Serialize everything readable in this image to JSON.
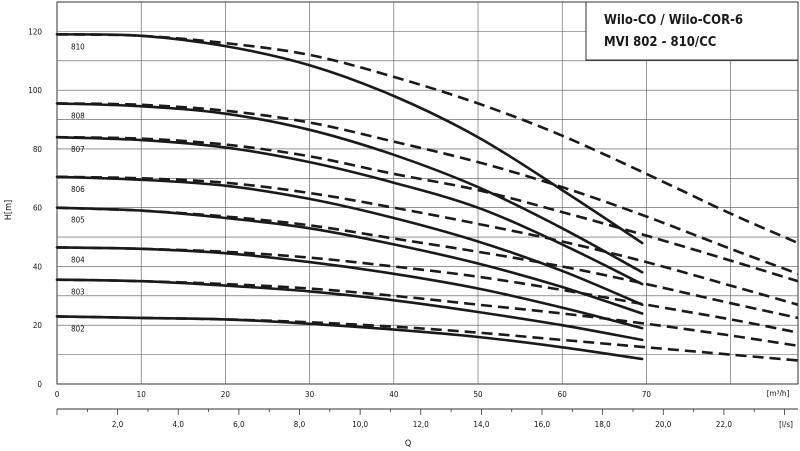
{
  "chart_data": {
    "type": "line",
    "title_lines": [
      "Wilo-CO / Wilo-COR-6",
      "MVI 802 - 810/CC"
    ],
    "ylabel": "H[m]",
    "xlabel": "Q",
    "x_unit_primary": "[m³/h]",
    "x_unit_secondary": "[l/s]",
    "xlim": [
      0,
      88
    ],
    "ylim": [
      0,
      130
    ],
    "grid": true,
    "y_ticks": [
      "0",
      "20",
      "40",
      "60",
      "80",
      "100",
      "120"
    ],
    "x_ticks_primary": [
      "0",
      "10",
      "20",
      "30",
      "40",
      "50",
      "60",
      "70"
    ],
    "x_ticks_secondary": [
      "2,0",
      "4,0",
      "6,0",
      "8,0",
      "10,0",
      "12,0",
      "14,0",
      "16,0",
      "18,0",
      "20,0",
      "22,0"
    ],
    "series": [
      {
        "name": "810",
        "solid": [
          [
            0,
            119
          ],
          [
            10,
            118.5
          ],
          [
            20,
            115
          ],
          [
            30,
            108.5
          ],
          [
            40,
            98
          ],
          [
            50,
            84
          ],
          [
            60,
            66
          ],
          [
            69.5,
            48
          ]
        ],
        "dashed": [
          [
            0,
            119
          ],
          [
            10,
            118.5
          ],
          [
            20,
            116
          ],
          [
            30,
            112
          ],
          [
            40,
            104.5
          ],
          [
            50,
            95.5
          ],
          [
            60,
            84.5
          ],
          [
            70,
            71.5
          ],
          [
            80,
            58
          ],
          [
            88,
            48
          ]
        ]
      },
      {
        "name": "808",
        "solid": [
          [
            0,
            95.5
          ],
          [
            10,
            94.5
          ],
          [
            20,
            92
          ],
          [
            30,
            86.5
          ],
          [
            40,
            78
          ],
          [
            50,
            67
          ],
          [
            60,
            53
          ],
          [
            69.5,
            38
          ]
        ],
        "dashed": [
          [
            0,
            95.5
          ],
          [
            10,
            95
          ],
          [
            20,
            93
          ],
          [
            30,
            89
          ],
          [
            40,
            82.5
          ],
          [
            50,
            75.5
          ],
          [
            60,
            67
          ],
          [
            70,
            57
          ],
          [
            80,
            46
          ],
          [
            88,
            37.5
          ]
        ]
      },
      {
        "name": "807",
        "solid": [
          [
            0,
            84
          ],
          [
            10,
            83
          ],
          [
            20,
            80.5
          ],
          [
            30,
            75.5
          ],
          [
            40,
            68.5
          ],
          [
            50,
            60
          ],
          [
            60,
            47.5
          ],
          [
            69.5,
            34
          ]
        ],
        "dashed": [
          [
            0,
            84
          ],
          [
            10,
            83.5
          ],
          [
            20,
            81.5
          ],
          [
            30,
            77.5
          ],
          [
            40,
            71.5
          ],
          [
            50,
            66
          ],
          [
            60,
            58.5
          ],
          [
            70,
            50.5
          ],
          [
            80,
            42
          ],
          [
            88,
            35
          ]
        ]
      },
      {
        "name": "806",
        "solid": [
          [
            0,
            70.5
          ],
          [
            10,
            69.5
          ],
          [
            20,
            67.5
          ],
          [
            30,
            63
          ],
          [
            40,
            56.5
          ],
          [
            50,
            48.5
          ],
          [
            60,
            38.5
          ],
          [
            69.5,
            27
          ]
        ],
        "dashed": [
          [
            0,
            70.5
          ],
          [
            10,
            70
          ],
          [
            20,
            68.5
          ],
          [
            30,
            65
          ],
          [
            40,
            60
          ],
          [
            50,
            54.5
          ],
          [
            60,
            48.5
          ],
          [
            70,
            41.5
          ],
          [
            80,
            33.5
          ],
          [
            88,
            27
          ]
        ]
      },
      {
        "name": "805",
        "solid": [
          [
            0,
            60
          ],
          [
            10,
            59
          ],
          [
            20,
            56.5
          ],
          [
            30,
            53
          ],
          [
            40,
            47.5
          ],
          [
            50,
            41
          ],
          [
            60,
            33
          ],
          [
            69.5,
            24
          ]
        ],
        "dashed": [
          [
            0,
            60
          ],
          [
            10,
            59
          ],
          [
            20,
            57
          ],
          [
            30,
            54
          ],
          [
            40,
            49.5
          ],
          [
            50,
            45
          ],
          [
            60,
            40
          ],
          [
            70,
            34
          ],
          [
            80,
            27.5
          ],
          [
            88,
            22.5
          ]
        ]
      },
      {
        "name": "804",
        "solid": [
          [
            0,
            46.5
          ],
          [
            10,
            46
          ],
          [
            20,
            44.5
          ],
          [
            30,
            41.5
          ],
          [
            40,
            37.5
          ],
          [
            50,
            32.5
          ],
          [
            60,
            26
          ],
          [
            69.5,
            19
          ]
        ],
        "dashed": [
          [
            0,
            46.5
          ],
          [
            10,
            46
          ],
          [
            20,
            45
          ],
          [
            30,
            43
          ],
          [
            40,
            40
          ],
          [
            50,
            36.5
          ],
          [
            60,
            32
          ],
          [
            70,
            27
          ],
          [
            80,
            22
          ],
          [
            88,
            17.5
          ]
        ]
      },
      {
        "name": "803",
        "solid": [
          [
            0,
            35.5
          ],
          [
            10,
            35
          ],
          [
            20,
            33.5
          ],
          [
            30,
            31.5
          ],
          [
            40,
            28.5
          ],
          [
            50,
            24.5
          ],
          [
            60,
            20
          ],
          [
            69.5,
            15
          ]
        ],
        "dashed": [
          [
            0,
            35.5
          ],
          [
            10,
            35
          ],
          [
            20,
            34
          ],
          [
            30,
            32.5
          ],
          [
            40,
            30
          ],
          [
            50,
            27
          ],
          [
            60,
            24
          ],
          [
            70,
            20.5
          ],
          [
            80,
            16.5
          ],
          [
            88,
            13
          ]
        ]
      },
      {
        "name": "802",
        "solid": [
          [
            0,
            23
          ],
          [
            10,
            22.5
          ],
          [
            20,
            22
          ],
          [
            30,
            20.5
          ],
          [
            40,
            18.5
          ],
          [
            50,
            16
          ],
          [
            60,
            12.5
          ],
          [
            69.5,
            8.5
          ]
        ],
        "dashed": [
          [
            0,
            23
          ],
          [
            10,
            22.5
          ],
          [
            20,
            22
          ],
          [
            30,
            21
          ],
          [
            40,
            19.5
          ],
          [
            50,
            17.5
          ],
          [
            60,
            15
          ],
          [
            70,
            12.5
          ],
          [
            80,
            10
          ],
          [
            88,
            8
          ]
        ]
      }
    ]
  }
}
